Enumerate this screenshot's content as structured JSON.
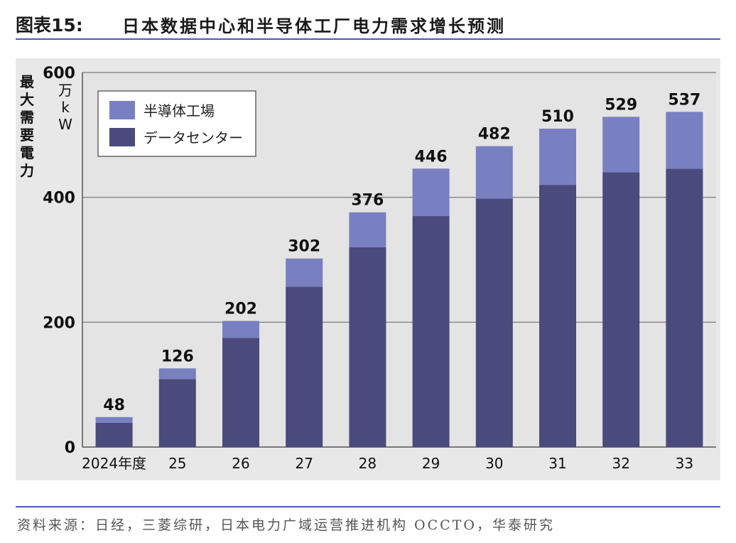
{
  "header": {
    "figure_label": "图表15:",
    "title": "日本数据中心和半导体工厂电力需求增长预测"
  },
  "source": {
    "text": "资料来源：日经，三菱综研，日本电力广域运营推进机构 OCCTO，华泰研究"
  },
  "chart_data": {
    "type": "bar",
    "stacked": true,
    "title": "日本数据中心和半导体工厂电力需求增长预测",
    "ylabel": "最大需要電力",
    "unit_chars": [
      "万",
      "k",
      "W"
    ],
    "xlabel": "",
    "categories": [
      "2024年度",
      "25",
      "26",
      "27",
      "28",
      "29",
      "30",
      "31",
      "32",
      "33"
    ],
    "ylim": [
      0,
      600
    ],
    "yticks": [
      0,
      200,
      400,
      600
    ],
    "grid": true,
    "legend_position": "top-left",
    "series": [
      {
        "name": "データセンター",
        "color": "#4a4a7c",
        "values": [
          39,
          109,
          175,
          257,
          320,
          370,
          398,
          420,
          440,
          446
        ]
      },
      {
        "name": "半導体工場",
        "color": "#7880c1",
        "values": [
          9,
          17,
          27,
          45,
          56,
          76,
          84,
          90,
          89,
          91
        ]
      }
    ],
    "totals": [
      48,
      126,
      202,
      302,
      376,
      446,
      482,
      510,
      529,
      537
    ]
  }
}
